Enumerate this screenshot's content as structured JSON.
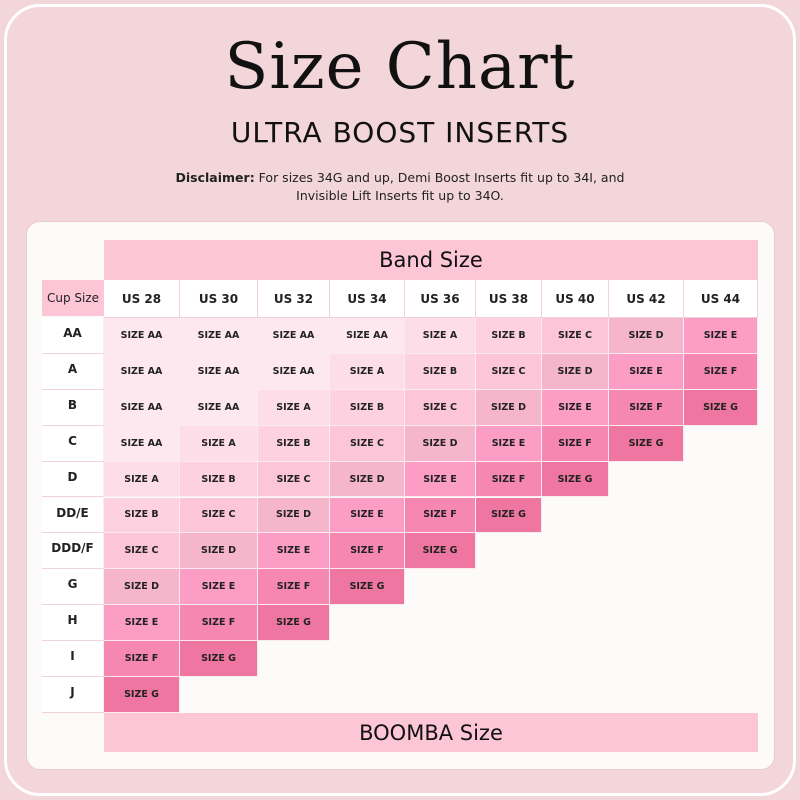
{
  "title": "Size Chart",
  "subtitle": "ULTRA BOOST INSERTS",
  "disclaimer": {
    "label": "Disclaimer:",
    "text": " For sizes 34G and up, Demi Boost Inserts fit up to 34I, and Invisible Lift Inserts fit up to 34O."
  },
  "table": {
    "band_header": "Band Size",
    "cup_header": "Cup Size",
    "footer": "BOOMBA Size",
    "bands": [
      "US 28",
      "US 30",
      "US 32",
      "US 34",
      "US 36",
      "US 38",
      "US 40",
      "US 42",
      "US 44"
    ],
    "cups": [
      "AA",
      "A",
      "B",
      "C",
      "D",
      "DD/E",
      "DDD/F",
      "G",
      "H",
      "I",
      "J"
    ],
    "rows": [
      [
        "SIZE AA",
        "SIZE AA",
        "SIZE AA",
        "SIZE AA",
        "SIZE A",
        "SIZE B",
        "SIZE C",
        "SIZE D",
        "SIZE E"
      ],
      [
        "SIZE AA",
        "SIZE AA",
        "SIZE AA",
        "SIZE A",
        "SIZE B",
        "SIZE C",
        "SIZE D",
        "SIZE E",
        "SIZE F"
      ],
      [
        "SIZE AA",
        "SIZE AA",
        "SIZE A",
        "SIZE B",
        "SIZE C",
        "SIZE D",
        "SIZE E",
        "SIZE F",
        "SIZE G"
      ],
      [
        "SIZE AA",
        "SIZE A",
        "SIZE B",
        "SIZE C",
        "SIZE D",
        "SIZE E",
        "SIZE F",
        "SIZE G"
      ],
      [
        "SIZE A",
        "SIZE B",
        "SIZE C",
        "SIZE D",
        "SIZE E",
        "SIZE F",
        "SIZE G"
      ],
      [
        "SIZE B",
        "SIZE C",
        "SIZE D",
        "SIZE E",
        "SIZE F",
        "SIZE G"
      ],
      [
        "SIZE C",
        "SIZE D",
        "SIZE E",
        "SIZE F",
        "SIZE G"
      ],
      [
        "SIZE D",
        "SIZE E",
        "SIZE F",
        "SIZE G"
      ],
      [
        "SIZE E",
        "SIZE F",
        "SIZE G"
      ],
      [
        "SIZE F",
        "SIZE G"
      ],
      [
        "SIZE G"
      ]
    ]
  },
  "size_colors": {
    "SIZE AA": "#fde8ef",
    "SIZE A": "#fddde8",
    "SIZE B": "#fdd1e0",
    "SIZE C": "#fcc5d8",
    "SIZE D": "#f5b6cc",
    "SIZE E": "#fb9dc4",
    "SIZE F": "#f587b0",
    "SIZE G": "#ef76a0"
  }
}
